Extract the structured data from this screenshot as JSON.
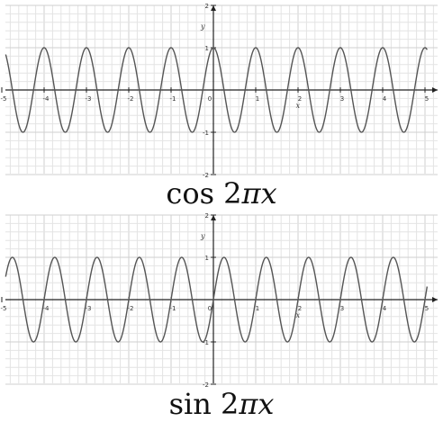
{
  "chart_data": [
    {
      "type": "line",
      "function": "cos",
      "caption": {
        "fn": "cos",
        "coef": "2",
        "pi": "π",
        "var": "x"
      },
      "xlim": [
        -5,
        5
      ],
      "ylim": [
        -2,
        2
      ],
      "x_ticks": [
        "-5",
        "-4",
        "-3",
        "-2",
        "-1",
        "0",
        "1",
        "2",
        "3",
        "4",
        "5"
      ],
      "y_ticks": [
        "2",
        "1",
        "-1",
        "-2"
      ],
      "xlabel": "x",
      "ylabel": "y",
      "grid": true,
      "series": [
        {
          "x": [
            -5,
            -4.5,
            -4,
            -3.5,
            -3,
            -2.5,
            -2,
            -1.5,
            -1,
            -0.5,
            0,
            0.5,
            1,
            1.5,
            2,
            2.5,
            3,
            3.5,
            4,
            4.5,
            5
          ],
          "y": [
            1,
            -1,
            1,
            -1,
            1,
            -1,
            1,
            -1,
            1,
            -1,
            1,
            -1,
            1,
            -1,
            1,
            -1,
            1,
            -1,
            1,
            -1,
            1
          ]
        }
      ]
    },
    {
      "type": "line",
      "function": "sin",
      "caption": {
        "fn": "sin",
        "coef": "2",
        "pi": "π",
        "var": "x"
      },
      "xlim": [
        -5,
        5
      ],
      "ylim": [
        -2,
        2
      ],
      "x_ticks": [
        "-5",
        "-4",
        "-3",
        "-2",
        "-1",
        "0",
        "1",
        "2",
        "3",
        "4",
        "5"
      ],
      "y_ticks": [
        "2",
        "1",
        "-1",
        "-2"
      ],
      "xlabel": "x",
      "ylabel": "y",
      "grid": true,
      "series": [
        {
          "x": [
            -5,
            -4.75,
            -4.5,
            -4.25,
            -4,
            -3.75,
            -3.5,
            -3.25,
            -3,
            -2.75,
            -2.5,
            -2.25,
            -2,
            -1.75,
            -1.5,
            -1.25,
            -1,
            -0.75,
            -0.5,
            -0.25,
            0,
            0.25,
            0.5,
            0.75,
            1,
            1.25,
            1.5,
            1.75,
            2,
            2.25,
            2.5,
            2.75,
            3,
            3.25,
            3.5,
            3.75,
            4,
            4.25,
            4.5,
            4.75,
            5
          ],
          "y": [
            0,
            1,
            0,
            -1,
            0,
            1,
            0,
            -1,
            0,
            1,
            0,
            -1,
            0,
            1,
            0,
            -1,
            0,
            1,
            0,
            -1,
            0,
            1,
            0,
            -1,
            0,
            1,
            0,
            -1,
            0,
            1,
            0,
            -1,
            0,
            1,
            0,
            -1,
            0,
            1,
            0,
            -1,
            0
          ]
        }
      ]
    }
  ],
  "colors": {
    "curve": "#555555",
    "axis": "#222222",
    "grid_minor": "#e4e4e4",
    "grid_major": "#cfcfcf",
    "tick_label": "#333333"
  }
}
